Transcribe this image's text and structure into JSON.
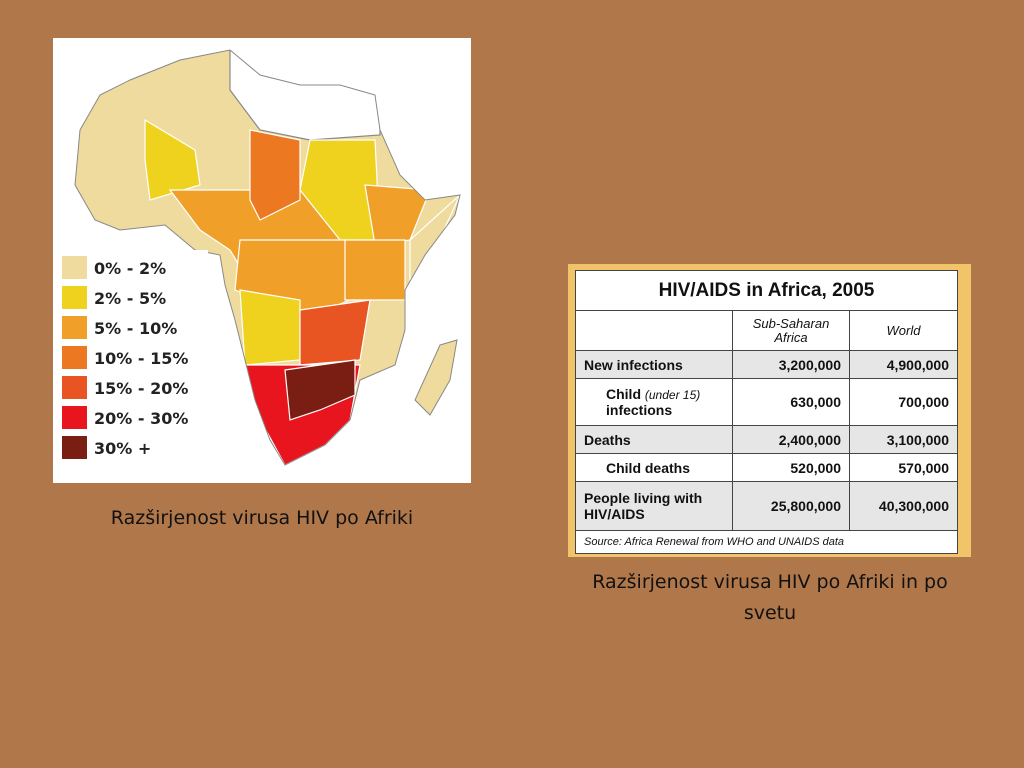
{
  "map": {
    "legend": [
      {
        "label": "0% - 2%",
        "color": "#EFDB9E"
      },
      {
        "label": "2% - 5%",
        "color": "#EFD21E"
      },
      {
        "label": "5% - 10%",
        "color": "#F0A028"
      },
      {
        "label": "10% - 15%",
        "color": "#EC7822"
      },
      {
        "label": "15% - 20%",
        "color": "#E85422"
      },
      {
        "label": "20% - 30%",
        "color": "#E8141E"
      },
      {
        "label": "30% +",
        "color": "#7A1E14"
      }
    ],
    "caption": "Razširjenost virusa HIV po Afriki"
  },
  "table": {
    "title": "HIV/AIDS in Africa, 2005",
    "columns": [
      "Sub-Saharan Africa",
      "World"
    ],
    "rows": [
      {
        "label": "New infections",
        "values": [
          "3,200,000",
          "4,900,000"
        ]
      },
      {
        "label": "Child",
        "note": "(under 15)",
        "label_end": "infections",
        "values": [
          "630,000",
          "700,000"
        ]
      },
      {
        "label": "Deaths",
        "values": [
          "2,400,000",
          "3,100,000"
        ]
      },
      {
        "label": "Child deaths",
        "values": [
          "520,000",
          "570,000"
        ]
      },
      {
        "label": "People living with HIV/AIDS",
        "values": [
          "25,800,000",
          "40,300,000"
        ]
      }
    ],
    "source": "Source: Africa Renewal from WHO and UNAIDS data",
    "caption": "Razširjenost virusa HIV po Afriki in po svetu"
  }
}
